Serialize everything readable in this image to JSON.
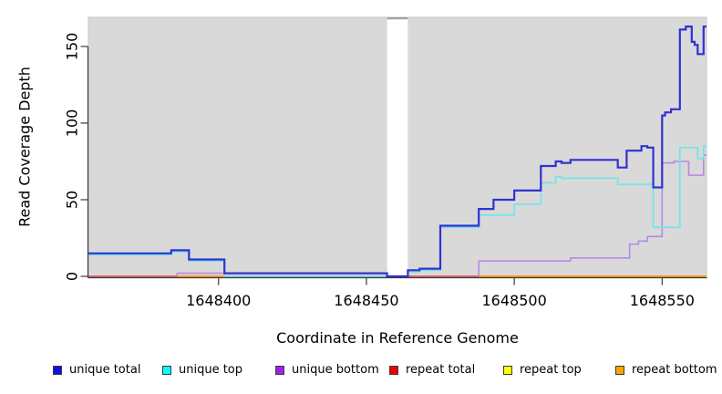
{
  "figure": {
    "background": "#ffffff",
    "plot_background": "#d9d9d9"
  },
  "chart_data": {
    "type": "line",
    "style": "step",
    "title": "",
    "xlabel": "Coordinate in Reference Genome",
    "ylabel": "Read Coverage Depth",
    "xlim": [
      1648356,
      1648565
    ],
    "ylim": [
      0,
      169
    ],
    "x_ticks": [
      1648400,
      1648450,
      1648500,
      1648550
    ],
    "y_ticks": [
      0,
      50,
      100,
      150
    ],
    "grid": false,
    "legend_position": "bottom",
    "gap_region": {
      "x_start": 1648457,
      "x_end": 1648464,
      "fill": "#ffffff",
      "cap_color": "#a3a3a3"
    },
    "draw_order": [
      "repeat top",
      "unique bottom",
      "repeat total",
      "repeat bottom",
      "unique top",
      "unique total"
    ],
    "series": [
      {
        "name": "unique total",
        "line_color": "#3231d4",
        "legend_color": "#1010e6",
        "line_width": 2.2,
        "segments": [
          [
            [
              1648356,
              15
            ],
            [
              1648384,
              17
            ],
            [
              1648390,
              11
            ],
            [
              1648402,
              2
            ],
            [
              1648457,
              0
            ],
            [
              1648464,
              4
            ],
            [
              1648468,
              5
            ],
            [
              1648475,
              33
            ],
            [
              1648488,
              44
            ],
            [
              1648493,
              50
            ],
            [
              1648500,
              56
            ],
            [
              1648509,
              72
            ],
            [
              1648514,
              75
            ],
            [
              1648516,
              74
            ],
            [
              1648519,
              76
            ],
            [
              1648535,
              71
            ],
            [
              1648538,
              82
            ],
            [
              1648543,
              85
            ],
            [
              1648545,
              84
            ],
            [
              1648547,
              58
            ],
            [
              1648550,
              105
            ],
            [
              1648551,
              107
            ],
            [
              1648553,
              109
            ],
            [
              1648556,
              161
            ],
            [
              1648558,
              163
            ],
            [
              1648560,
              153
            ],
            [
              1648561,
              151
            ],
            [
              1648562,
              145
            ],
            [
              1648564,
              163
            ],
            [
              1648565,
              163
            ]
          ]
        ]
      },
      {
        "name": "unique top",
        "line_color": "#79e4e8",
        "legend_color": "#00ffff",
        "line_width": 1.8,
        "segments": [
          [
            [
              1648356,
              14
            ],
            [
              1648384,
              16
            ],
            [
              1648390,
              10
            ],
            [
              1648402,
              0
            ],
            [
              1648464,
              3
            ],
            [
              1648468,
              4
            ],
            [
              1648475,
              32
            ],
            [
              1648488,
              40
            ],
            [
              1648500,
              47
            ],
            [
              1648509,
              61
            ],
            [
              1648514,
              65
            ],
            [
              1648516,
              64
            ],
            [
              1648535,
              60
            ],
            [
              1648547,
              32
            ],
            [
              1648556,
              84
            ],
            [
              1648562,
              77
            ],
            [
              1648564,
              85
            ],
            [
              1648565,
              85
            ]
          ]
        ]
      },
      {
        "name": "unique bottom",
        "line_color": "#b58ae2",
        "legend_color": "#a020f0",
        "line_width": 1.6,
        "segments": [
          [
            [
              1648356,
              0
            ],
            [
              1648386,
              2
            ],
            [
              1648457,
              0
            ],
            [
              1648488,
              10
            ],
            [
              1648519,
              12
            ],
            [
              1648539,
              21
            ],
            [
              1648542,
              23
            ],
            [
              1648545,
              26
            ],
            [
              1648550,
              74
            ],
            [
              1648554,
              75
            ],
            [
              1648559,
              66
            ],
            [
              1648564,
              79
            ],
            [
              1648565,
              79
            ]
          ]
        ]
      },
      {
        "name": "repeat total",
        "line_color": "#e2576f",
        "legend_color": "#ee0000",
        "line_width": 1.7,
        "segments": [
          [
            [
              1648356,
              0
            ],
            [
              1648565,
              0
            ]
          ]
        ]
      },
      {
        "name": "repeat top",
        "line_color": "#ffff00",
        "legend_color": "#ffff00",
        "line_width": 1.5,
        "segments": [
          [
            [
              1648356,
              0
            ],
            [
              1648565,
              0
            ]
          ]
        ]
      },
      {
        "name": "repeat bottom",
        "line_color": "#ffa113",
        "legend_color": "#ffa200",
        "line_width": 1.8,
        "segments": [
          [
            [
              1648386,
              0
            ],
            [
              1648402,
              0
            ]
          ],
          [
            [
              1648488,
              0
            ],
            [
              1648565,
              0
            ]
          ]
        ]
      }
    ]
  }
}
